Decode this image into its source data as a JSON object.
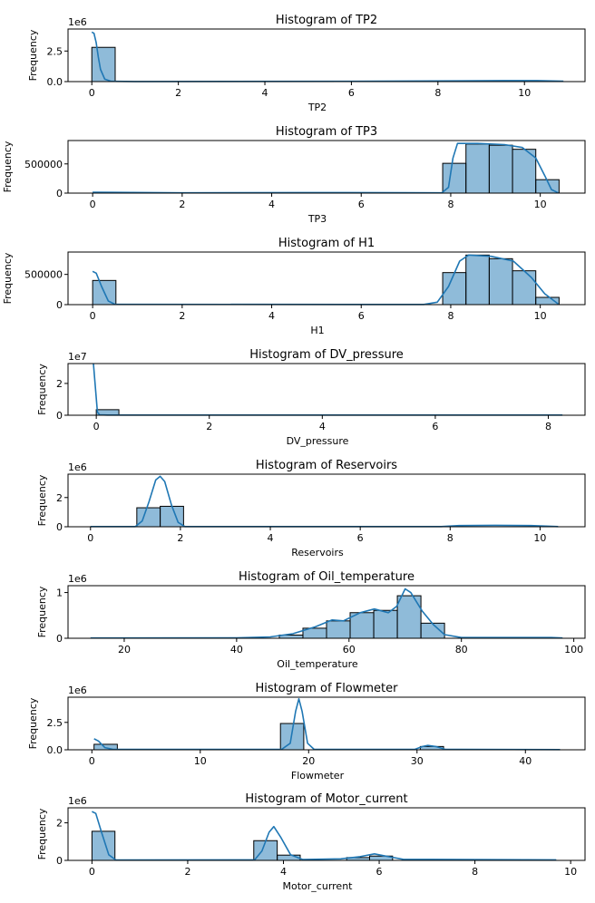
{
  "chart_data": [
    {
      "type": "bar",
      "title": "Histogram of TP2",
      "xlabel": "TP2",
      "ylabel": "Frequency",
      "y_offset_label": "1e6",
      "xlim": [
        -0.55,
        11.4
      ],
      "ylim": [
        0,
        4300000
      ],
      "xticks": [
        0,
        2,
        4,
        6,
        8,
        10
      ],
      "yticks": [
        0,
        2500000
      ],
      "ytick_labels": [
        "0.0",
        "2.5"
      ],
      "bin_edges": [
        0,
        0.54
      ],
      "counts": [
        2800000
      ],
      "kde": [
        [
          0,
          4050000
        ],
        [
          0.05,
          3950000
        ],
        [
          0.1,
          3200000
        ],
        [
          0.15,
          2000000
        ],
        [
          0.2,
          1000000
        ],
        [
          0.3,
          200000
        ],
        [
          0.45,
          20000
        ],
        [
          1,
          10000
        ],
        [
          6,
          20000
        ],
        [
          8.5,
          60000
        ],
        [
          9.5,
          80000
        ],
        [
          10.3,
          80000
        ],
        [
          10.9,
          30000
        ]
      ],
      "kde_xmax": 10.9
    },
    {
      "type": "bar",
      "title": "Histogram of TP3",
      "xlabel": "TP3",
      "ylabel": "Frequency",
      "y_offset_label": "",
      "xlim": [
        -0.55,
        11.0
      ],
      "ylim": [
        0,
        900000
      ],
      "xticks": [
        0,
        2,
        4,
        6,
        8,
        10
      ],
      "yticks": [
        0,
        500000
      ],
      "ytick_labels": [
        "0",
        "500000"
      ],
      "bin_edges": [
        7.82,
        8.34,
        8.86,
        9.38,
        9.9,
        10.42
      ],
      "counts": [
        510000,
        840000,
        820000,
        750000,
        230000
      ],
      "kde": [
        [
          0,
          15000
        ],
        [
          2,
          5000
        ],
        [
          4.7,
          10000
        ],
        [
          7,
          8000
        ],
        [
          7.8,
          5000
        ],
        [
          7.95,
          100000
        ],
        [
          8.05,
          600000
        ],
        [
          8.15,
          850000
        ],
        [
          8.6,
          850000
        ],
        [
          9.2,
          830000
        ],
        [
          9.6,
          780000
        ],
        [
          9.9,
          600000
        ],
        [
          10.1,
          300000
        ],
        [
          10.25,
          60000
        ],
        [
          10.4,
          5000
        ]
      ]
    },
    {
      "type": "bar",
      "title": "Histogram of H1",
      "xlabel": "H1",
      "ylabel": "Frequency",
      "y_offset_label": "",
      "xlim": [
        -0.55,
        11.0
      ],
      "ylim": [
        0,
        870000
      ],
      "xticks": [
        0,
        2,
        4,
        6,
        8,
        10
      ],
      "yticks": [
        0,
        500000
      ],
      "ytick_labels": [
        "0",
        "500000"
      ],
      "bin_edges": [
        0,
        0.52,
        7.82,
        8.34,
        8.86,
        9.38,
        9.9,
        10.42
      ],
      "counts": [
        400000,
        0,
        530000,
        820000,
        760000,
        560000,
        120000
      ],
      "kde": [
        [
          0,
          550000
        ],
        [
          0.08,
          520000
        ],
        [
          0.2,
          300000
        ],
        [
          0.35,
          60000
        ],
        [
          0.5,
          5000
        ],
        [
          7.4,
          3000
        ],
        [
          7.7,
          40000
        ],
        [
          7.95,
          300000
        ],
        [
          8.2,
          720000
        ],
        [
          8.4,
          820000
        ],
        [
          8.9,
          800000
        ],
        [
          9.4,
          720000
        ],
        [
          9.8,
          450000
        ],
        [
          10.1,
          180000
        ],
        [
          10.4,
          10000
        ]
      ]
    },
    {
      "type": "bar",
      "title": "Histogram of DV_pressure",
      "xlabel": "DV_pressure",
      "ylabel": "Frequency",
      "y_offset_label": "1e7",
      "xlim": [
        -0.5,
        8.65
      ],
      "ylim": [
        0,
        32500000
      ],
      "xticks": [
        0,
        2,
        4,
        6,
        8
      ],
      "yticks": [
        0,
        20000000
      ],
      "ytick_labels": [
        "0",
        "2"
      ],
      "bin_edges": [
        0,
        0.4
      ],
      "counts": [
        3500000
      ],
      "kde": [
        [
          -0.05,
          32500000
        ],
        [
          0.02,
          2000000
        ],
        [
          0.06,
          200000
        ],
        [
          0.2,
          100000
        ],
        [
          8.25,
          100000
        ]
      ]
    },
    {
      "type": "bar",
      "title": "Histogram of Reservoirs",
      "xlabel": "Reservoirs",
      "ylabel": "Frequency",
      "y_offset_label": "1e6",
      "xlim": [
        -0.5,
        11.0
      ],
      "ylim": [
        0,
        3600000
      ],
      "xticks": [
        0,
        2,
        4,
        6,
        8,
        10
      ],
      "yticks": [
        0,
        2000000
      ],
      "ytick_labels": [
        "0",
        "2"
      ],
      "bin_edges": [
        1.03,
        1.55,
        2.07
      ],
      "counts": [
        1300000,
        1400000
      ],
      "kde": [
        [
          0,
          10000
        ],
        [
          1.0,
          10000
        ],
        [
          1.15,
          400000
        ],
        [
          1.3,
          1700000
        ],
        [
          1.45,
          3200000
        ],
        [
          1.55,
          3450000
        ],
        [
          1.65,
          3100000
        ],
        [
          1.8,
          1500000
        ],
        [
          1.95,
          300000
        ],
        [
          2.1,
          10000
        ],
        [
          7.8,
          10000
        ],
        [
          8.2,
          80000
        ],
        [
          9,
          100000
        ],
        [
          9.8,
          80000
        ],
        [
          10.4,
          10000
        ]
      ]
    },
    {
      "type": "bar",
      "title": "Histogram of Oil_temperature",
      "xlabel": "Oil_temperature",
      "ylabel": "Frequency",
      "y_offset_label": "1e6",
      "xlim": [
        10,
        102
      ],
      "ylim": [
        0,
        1150000
      ],
      "xticks": [
        20,
        40,
        60,
        80,
        100
      ],
      "yticks": [
        0,
        1000000
      ],
      "ytick_labels": [
        "0",
        "1"
      ],
      "bin_edges": [
        47.6,
        51.8,
        56.0,
        60.2,
        64.4,
        68.6,
        72.8,
        77.0
      ],
      "counts": [
        70000,
        220000,
        380000,
        560000,
        610000,
        930000,
        330000
      ],
      "kde": [
        [
          14,
          5000
        ],
        [
          40,
          8000
        ],
        [
          46,
          30000
        ],
        [
          50,
          100000
        ],
        [
          54,
          250000
        ],
        [
          57,
          400000
        ],
        [
          59,
          380000
        ],
        [
          62,
          560000
        ],
        [
          64.5,
          640000
        ],
        [
          67,
          560000
        ],
        [
          68.5,
          700000
        ],
        [
          70,
          1080000
        ],
        [
          71,
          1000000
        ],
        [
          73,
          600000
        ],
        [
          75,
          300000
        ],
        [
          77,
          80000
        ],
        [
          80,
          15000
        ],
        [
          96,
          15000
        ],
        [
          98,
          5000
        ]
      ]
    },
    {
      "type": "bar",
      "title": "Histogram of Flowmeter",
      "xlabel": "Flowmeter",
      "ylabel": "Frequency",
      "y_offset_label": "1e6",
      "xlim": [
        -2.2,
        45.5
      ],
      "ylim": [
        0,
        4800000
      ],
      "xticks": [
        0,
        10,
        20,
        30,
        40
      ],
      "yticks": [
        0,
        2500000
      ],
      "ytick_labels": [
        "0.0",
        "2.5"
      ],
      "bin_edges": [
        0.2,
        2.35,
        17.4,
        19.55,
        30.3,
        32.45
      ],
      "counts": [
        500000,
        0,
        2400000,
        0,
        300000
      ],
      "kde": [
        [
          0.2,
          1000000
        ],
        [
          0.6,
          800000
        ],
        [
          1.2,
          200000
        ],
        [
          2,
          30000
        ],
        [
          17.5,
          30000
        ],
        [
          18.3,
          600000
        ],
        [
          18.8,
          3500000
        ],
        [
          19.1,
          4650000
        ],
        [
          19.4,
          3500000
        ],
        [
          19.9,
          600000
        ],
        [
          20.5,
          40000
        ],
        [
          29.8,
          40000
        ],
        [
          30.5,
          300000
        ],
        [
          31,
          400000
        ],
        [
          31.8,
          280000
        ],
        [
          32.6,
          40000
        ],
        [
          43.2,
          20000
        ]
      ]
    },
    {
      "type": "bar",
      "title": "Histogram of Motor_current",
      "xlabel": "Motor_current",
      "ylabel": "Frequency",
      "y_offset_label": "1e6",
      "xlim": [
        -0.5,
        10.3
      ],
      "ylim": [
        0,
        2800000
      ],
      "xticks": [
        0,
        2,
        4,
        6,
        8,
        10
      ],
      "yticks": [
        0,
        2000000
      ],
      "ytick_labels": [
        "0",
        "2"
      ],
      "bin_edges": [
        0,
        0.48,
        3.38,
        3.87,
        4.35,
        5.32,
        5.8,
        6.28
      ],
      "counts": [
        1550000,
        0,
        1050000,
        280000,
        0,
        150000,
        230000
      ],
      "kde": [
        [
          0,
          2600000
        ],
        [
          0.08,
          2500000
        ],
        [
          0.2,
          1500000
        ],
        [
          0.35,
          300000
        ],
        [
          0.5,
          20000
        ],
        [
          3.4,
          30000
        ],
        [
          3.55,
          500000
        ],
        [
          3.7,
          1500000
        ],
        [
          3.8,
          1800000
        ],
        [
          3.95,
          1200000
        ],
        [
          4.15,
          300000
        ],
        [
          4.4,
          50000
        ],
        [
          5.2,
          80000
        ],
        [
          5.6,
          200000
        ],
        [
          5.9,
          350000
        ],
        [
          6.2,
          200000
        ],
        [
          6.5,
          60000
        ],
        [
          9.7,
          30000
        ]
      ]
    }
  ]
}
